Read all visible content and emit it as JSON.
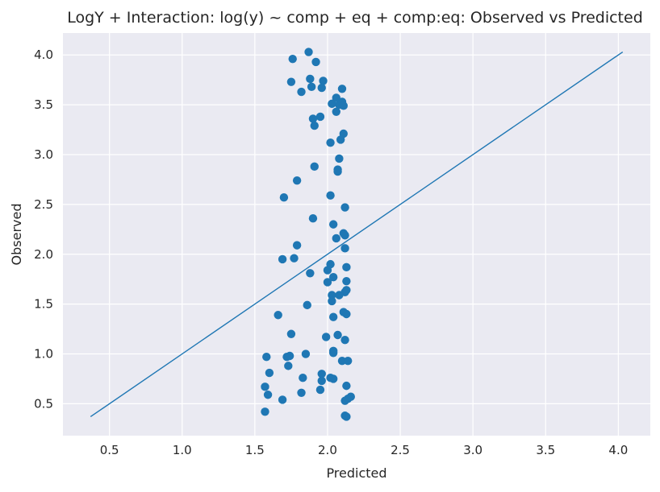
{
  "chart_data": {
    "type": "scatter",
    "title": "LogY + Interaction: log(y) ~ comp + eq + comp:eq: Observed vs Predicted",
    "xlabel": "Predicted",
    "ylabel": "Observed",
    "xlim": [
      0.18,
      4.22
    ],
    "ylim": [
      0.18,
      4.22
    ],
    "x_ticks": [
      "0.5",
      "1.0",
      "1.5",
      "2.0",
      "2.5",
      "3.0",
      "3.5",
      "4.0"
    ],
    "y_ticks": [
      "0.5",
      "1.0",
      "1.5",
      "2.0",
      "2.5",
      "3.0",
      "3.5",
      "4.0"
    ],
    "grid": true,
    "background": "#EAEAF2",
    "point_color": "#1F77B4",
    "line_color": "#1F77B4",
    "reference_line": {
      "x": [
        0.37,
        4.03
      ],
      "y": [
        0.37,
        4.03
      ]
    },
    "points": [
      [
        1.87,
        4.03
      ],
      [
        1.76,
        3.96
      ],
      [
        1.92,
        3.93
      ],
      [
        1.75,
        3.73
      ],
      [
        1.88,
        3.76
      ],
      [
        1.97,
        3.74
      ],
      [
        1.89,
        3.68
      ],
      [
        1.96,
        3.67
      ],
      [
        2.1,
        3.66
      ],
      [
        1.82,
        3.63
      ],
      [
        2.06,
        3.57
      ],
      [
        2.03,
        3.51
      ],
      [
        2.1,
        3.53
      ],
      [
        2.08,
        3.5
      ],
      [
        2.11,
        3.49
      ],
      [
        2.06,
        3.43
      ],
      [
        1.95,
        3.38
      ],
      [
        1.9,
        3.36
      ],
      [
        1.91,
        3.29
      ],
      [
        2.11,
        3.21
      ],
      [
        2.09,
        3.15
      ],
      [
        2.02,
        3.12
      ],
      [
        2.08,
        2.96
      ],
      [
        1.91,
        2.88
      ],
      [
        2.07,
        2.85
      ],
      [
        2.07,
        2.83
      ],
      [
        1.79,
        2.74
      ],
      [
        1.7,
        2.57
      ],
      [
        2.02,
        2.59
      ],
      [
        2.12,
        2.47
      ],
      [
        1.9,
        2.36
      ],
      [
        2.04,
        2.3
      ],
      [
        2.11,
        2.21
      ],
      [
        2.12,
        2.19
      ],
      [
        2.06,
        2.16
      ],
      [
        1.79,
        2.09
      ],
      [
        2.12,
        2.06
      ],
      [
        1.69,
        1.95
      ],
      [
        1.77,
        1.96
      ],
      [
        2.02,
        1.9
      ],
      [
        2.13,
        1.87
      ],
      [
        2.0,
        1.84
      ],
      [
        1.88,
        1.81
      ],
      [
        2.04,
        1.77
      ],
      [
        2.0,
        1.72
      ],
      [
        2.13,
        1.73
      ],
      [
        2.13,
        1.64
      ],
      [
        2.12,
        1.62
      ],
      [
        2.03,
        1.59
      ],
      [
        2.08,
        1.59
      ],
      [
        2.03,
        1.53
      ],
      [
        1.86,
        1.49
      ],
      [
        2.11,
        1.42
      ],
      [
        2.13,
        1.4
      ],
      [
        1.66,
        1.39
      ],
      [
        2.04,
        1.37
      ],
      [
        1.75,
        1.2
      ],
      [
        1.99,
        1.17
      ],
      [
        2.07,
        1.19
      ],
      [
        2.12,
        1.14
      ],
      [
        2.04,
        1.03
      ],
      [
        2.04,
        1.01
      ],
      [
        1.85,
        1.0
      ],
      [
        1.74,
        0.98
      ],
      [
        1.72,
        0.97
      ],
      [
        1.58,
        0.97
      ],
      [
        2.1,
        0.93
      ],
      [
        2.14,
        0.93
      ],
      [
        1.73,
        0.88
      ],
      [
        1.6,
        0.81
      ],
      [
        1.96,
        0.8
      ],
      [
        1.83,
        0.76
      ],
      [
        2.02,
        0.76
      ],
      [
        2.04,
        0.75
      ],
      [
        1.96,
        0.73
      ],
      [
        2.13,
        0.68
      ],
      [
        1.57,
        0.67
      ],
      [
        1.95,
        0.64
      ],
      [
        1.82,
        0.61
      ],
      [
        1.59,
        0.59
      ],
      [
        2.16,
        0.57
      ],
      [
        2.14,
        0.55
      ],
      [
        1.69,
        0.54
      ],
      [
        2.12,
        0.53
      ],
      [
        1.57,
        0.42
      ],
      [
        2.12,
        0.38
      ],
      [
        2.13,
        0.37
      ]
    ]
  }
}
